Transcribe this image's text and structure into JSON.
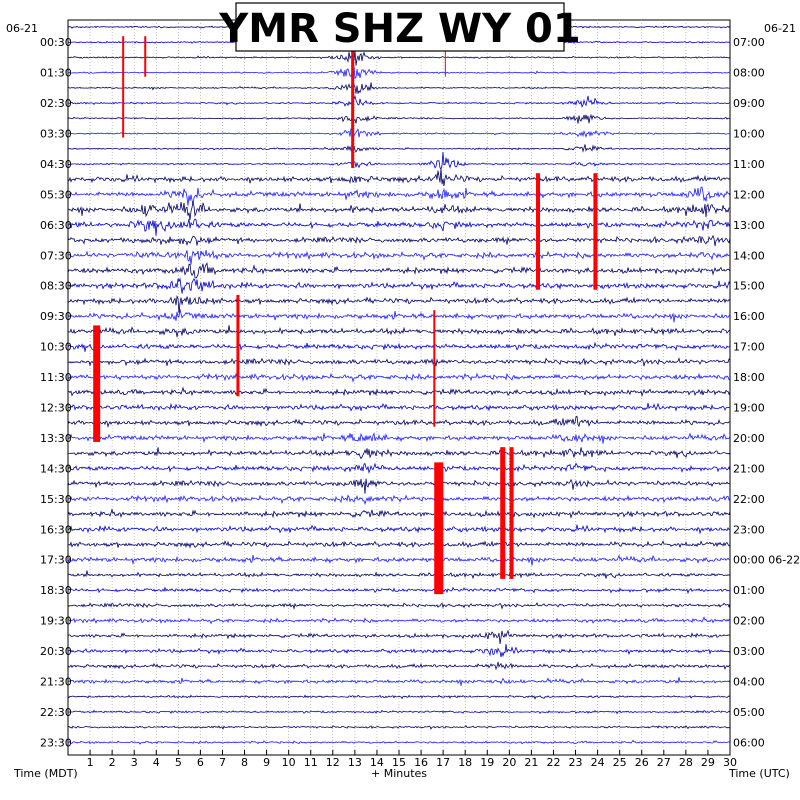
{
  "chart_data": {
    "type": "line",
    "title": "YMR SHZ WY 01",
    "xlabel": "+ Minutes",
    "left_axis_label": "Time (MDT)",
    "right_axis_label": "Time (UTC)",
    "date_left": "06-21",
    "date_right": "06-21",
    "x_range": [
      0,
      30
    ],
    "x_ticks": [
      "1",
      "2",
      "3",
      "4",
      "5",
      "6",
      "7",
      "8",
      "9",
      "10",
      "11",
      "12",
      "13",
      "14",
      "15",
      "16",
      "17",
      "18",
      "19",
      "20",
      "21",
      "22",
      "23",
      "24",
      "25",
      "26",
      "27",
      "28",
      "29",
      "30"
    ],
    "left_times": [
      "00:30",
      "01:30",
      "02:30",
      "03:30",
      "04:30",
      "05:30",
      "06:30",
      "07:30",
      "08:30",
      "09:30",
      "10:30",
      "11:30",
      "12:30",
      "13:30",
      "14:30",
      "15:30",
      "16:30",
      "17:30",
      "18:30",
      "19:30",
      "20:30",
      "21:30",
      "22:30",
      "23:30"
    ],
    "right_times": [
      "07:00",
      "08:00",
      "09:00",
      "10:00",
      "11:00",
      "12:00",
      "13:00",
      "14:00",
      "15:00",
      "16:00",
      "17:00",
      "18:00",
      "19:00",
      "20:00",
      "21:00",
      "22:00",
      "23:00",
      "00:00 06-22",
      "01:00",
      "02:00",
      "03:00",
      "04:00",
      "05:00",
      "06:00"
    ],
    "trace_count": 48,
    "trace_colors": [
      "#000066",
      "#0000cc",
      "#1e1eff"
    ],
    "clip_color": "#ff0000",
    "grid": true,
    "events": [
      {
        "minute": 13.0,
        "row_start": 2,
        "row_end": 12,
        "amp": 1.0
      },
      {
        "minute": 23.5,
        "row_start": 5,
        "row_end": 9,
        "amp": 0.8
      },
      {
        "minute": 17.0,
        "row_start": 9,
        "row_end": 13,
        "amp": 0.9
      },
      {
        "minute": 5.5,
        "row_start": 11,
        "row_end": 16,
        "amp": 0.9
      },
      {
        "minute": 28.8,
        "row_start": 11,
        "row_end": 15,
        "amp": 0.8
      },
      {
        "minute": 3.6,
        "row_start": 12,
        "row_end": 15,
        "amp": 0.6
      },
      {
        "minute": 6.0,
        "row_start": 15,
        "row_end": 18,
        "amp": 0.7
      },
      {
        "minute": 5.0,
        "row_start": 17,
        "row_end": 20,
        "amp": 0.7
      },
      {
        "minute": 13.5,
        "row_start": 27,
        "row_end": 32,
        "amp": 0.8
      },
      {
        "minute": 23.0,
        "row_start": 26,
        "row_end": 30,
        "amp": 0.6
      },
      {
        "minute": 19.5,
        "row_start": 40,
        "row_end": 43,
        "amp": 0.6
      }
    ],
    "clips": [
      {
        "minute": 1.3,
        "row_start": 20,
        "row_end": 27,
        "weight": 7
      },
      {
        "minute": 2.5,
        "row_start": 1,
        "row_end": 7,
        "weight": 2
      },
      {
        "minute": 3.5,
        "row_start": 1,
        "row_end": 3,
        "weight": 2
      },
      {
        "minute": 7.7,
        "row_start": 18,
        "row_end": 24,
        "weight": 3
      },
      {
        "minute": 12.9,
        "row_start": 0,
        "row_end": 9,
        "weight": 3
      },
      {
        "minute": 16.6,
        "row_start": 19,
        "row_end": 26,
        "weight": 2
      },
      {
        "minute": 16.8,
        "row_start": 29,
        "row_end": 37,
        "weight": 9
      },
      {
        "minute": 19.7,
        "row_start": 28,
        "row_end": 36,
        "weight": 5
      },
      {
        "minute": 20.1,
        "row_start": 28,
        "row_end": 36,
        "weight": 4
      },
      {
        "minute": 21.3,
        "row_start": 10,
        "row_end": 17,
        "weight": 4
      },
      {
        "minute": 23.9,
        "row_start": 10,
        "row_end": 17,
        "weight": 4
      },
      {
        "minute": 17.1,
        "row_start": 1,
        "row_end": 3,
        "weight": 1
      }
    ]
  }
}
